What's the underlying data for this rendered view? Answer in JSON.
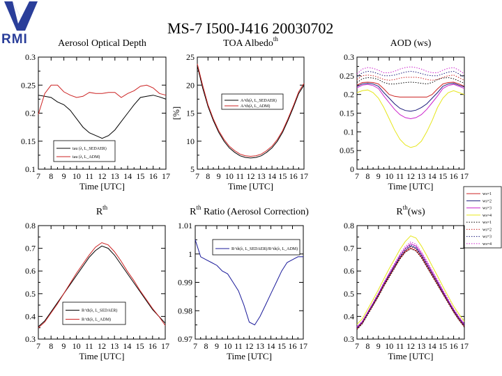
{
  "page": {
    "title": "MS-7 I500-J416 20030702",
    "logo_text": "RMI",
    "logo_color": "#2a3e9a"
  },
  "chart_data": [
    {
      "id": "aod",
      "type": "line",
      "title": "Aerosol Optical Depth",
      "title_sup": "",
      "xlabel": "Time [UTC]",
      "ylabel": "",
      "xlim": [
        7,
        17
      ],
      "ylim": [
        0.1,
        0.3
      ],
      "xticks": [
        "7",
        "8",
        "9",
        "10",
        "11",
        "12",
        "13",
        "14",
        "15",
        "16",
        "17"
      ],
      "yticks": [
        "0.1",
        "0.15",
        "0.2",
        "0.25",
        "0.3"
      ],
      "x": [
        7,
        7.5,
        8,
        8.5,
        9,
        9.5,
        10,
        10.5,
        11,
        11.5,
        12,
        12.5,
        13,
        13.5,
        14,
        14.5,
        15,
        15.5,
        16,
        16.5,
        17
      ],
      "series": [
        {
          "name": "tau (λ, L_SEDAER)",
          "color": "#000000",
          "dash": "",
          "values": [
            0.232,
            0.23,
            0.228,
            0.22,
            0.215,
            0.205,
            0.19,
            0.175,
            0.165,
            0.16,
            0.155,
            0.16,
            0.17,
            0.185,
            0.2,
            0.215,
            0.228,
            0.23,
            0.232,
            0.229,
            0.225
          ]
        },
        {
          "name": "tau (λ, L_ADM)",
          "color": "#cc2222",
          "dash": "",
          "values": [
            0.198,
            0.235,
            0.25,
            0.25,
            0.238,
            0.232,
            0.228,
            0.23,
            0.237,
            0.235,
            0.235,
            0.237,
            0.237,
            0.228,
            0.235,
            0.24,
            0.248,
            0.25,
            0.245,
            0.235,
            0.232
          ]
        }
      ],
      "legend_pos": "bottom-left"
    },
    {
      "id": "albedo",
      "type": "line",
      "title": "TOA Albedo",
      "title_sup": "th",
      "xlabel": "Time [UTC]",
      "ylabel": "[%]",
      "xlim": [
        7,
        17
      ],
      "ylim": [
        5,
        25
      ],
      "xticks": [
        "7",
        "8",
        "9",
        "10",
        "11",
        "12",
        "13",
        "14",
        "15",
        "16",
        "17"
      ],
      "yticks": [
        "5",
        "10",
        "15",
        "20",
        "25"
      ],
      "x": [
        7,
        7.5,
        8,
        8.5,
        9,
        9.5,
        10,
        10.5,
        11,
        11.5,
        12,
        12.5,
        13,
        13.5,
        14,
        14.5,
        15,
        15.5,
        16,
        16.5,
        17
      ],
      "series": [
        {
          "name": "A^th(λ, L_SEDAER)",
          "color": "#000000",
          "dash": "",
          "values": [
            23.5,
            19.5,
            16.2,
            13.7,
            11.6,
            10.0,
            8.8,
            8.0,
            7.4,
            7.1,
            7.0,
            7.1,
            7.4,
            8.0,
            8.8,
            10.0,
            11.6,
            13.7,
            16.0,
            18.5,
            20.0
          ]
        },
        {
          "name": "A^th(λ, L_ADM)",
          "color": "#cc2222",
          "dash": "",
          "values": [
            23.8,
            20.0,
            16.5,
            14.0,
            11.9,
            10.3,
            9.1,
            8.3,
            7.7,
            7.4,
            7.3,
            7.4,
            7.7,
            8.3,
            9.1,
            10.3,
            11.9,
            14.0,
            16.3,
            18.8,
            20.3
          ]
        }
      ],
      "legend_pos": "center"
    },
    {
      "id": "aod_ws",
      "type": "line",
      "title": "AOD (ws)",
      "title_sup": "",
      "xlabel": "Time [UTC]",
      "ylabel": "",
      "xlim": [
        7,
        17
      ],
      "ylim": [
        0,
        0.3
      ],
      "xticks": [
        "7",
        "8",
        "9",
        "10",
        "11",
        "12",
        "13",
        "14",
        "15",
        "16",
        "17"
      ],
      "yticks": [
        "0",
        "0.05",
        "0.1",
        "0.15",
        "0.2",
        "0.25",
        "0.3"
      ],
      "x": [
        7,
        7.5,
        8,
        8.5,
        9,
        9.5,
        10,
        10.5,
        11,
        11.5,
        12,
        12.5,
        13,
        13.5,
        14,
        14.5,
        15,
        15.5,
        16,
        16.5,
        17
      ],
      "series": [
        {
          "name": "ws=1",
          "color": "#cc2222",
          "dash": "",
          "values": [
            0.225,
            0.232,
            0.233,
            0.232,
            0.228,
            0.215,
            0.2,
            0.195,
            0.193,
            0.193,
            0.193,
            0.193,
            0.193,
            0.193,
            0.2,
            0.215,
            0.228,
            0.232,
            0.233,
            0.228,
            0.222
          ]
        },
        {
          "name": "ws=2",
          "color": "#1a1a7a",
          "dash": "",
          "values": [
            0.222,
            0.228,
            0.23,
            0.228,
            0.222,
            0.205,
            0.19,
            0.175,
            0.163,
            0.157,
            0.155,
            0.158,
            0.165,
            0.175,
            0.19,
            0.205,
            0.222,
            0.228,
            0.23,
            0.225,
            0.22
          ]
        },
        {
          "name": "ws=3",
          "color": "#cc22cc",
          "dash": "",
          "values": [
            0.218,
            0.225,
            0.227,
            0.224,
            0.216,
            0.196,
            0.178,
            0.16,
            0.146,
            0.138,
            0.135,
            0.138,
            0.146,
            0.16,
            0.178,
            0.196,
            0.216,
            0.224,
            0.227,
            0.222,
            0.216
          ]
        },
        {
          "name": "ws=4",
          "color": "#e6e61a",
          "dash": "",
          "values": [
            0.205,
            0.21,
            0.212,
            0.205,
            0.19,
            0.165,
            0.135,
            0.105,
            0.08,
            0.065,
            0.058,
            0.062,
            0.075,
            0.1,
            0.13,
            0.165,
            0.19,
            0.205,
            0.21,
            0.205,
            0.2
          ]
        },
        {
          "name": "ws=1",
          "color": "#000000",
          "dash": "1.5,2",
          "values": [
            0.232,
            0.242,
            0.245,
            0.244,
            0.24,
            0.232,
            0.228,
            0.228,
            0.23,
            0.232,
            0.233,
            0.232,
            0.23,
            0.228,
            0.232,
            0.24,
            0.244,
            0.245,
            0.242,
            0.236,
            0.23
          ]
        },
        {
          "name": "ws=2",
          "color": "#cc2222",
          "dash": "1.5,2",
          "values": [
            0.24,
            0.25,
            0.252,
            0.25,
            0.246,
            0.24,
            0.238,
            0.24,
            0.244,
            0.246,
            0.246,
            0.246,
            0.244,
            0.24,
            0.238,
            0.24,
            0.246,
            0.25,
            0.252,
            0.245,
            0.238
          ]
        },
        {
          "name": "ws=3",
          "color": "#1a1a7a",
          "dash": "1.5,2",
          "values": [
            0.248,
            0.258,
            0.262,
            0.26,
            0.255,
            0.25,
            0.25,
            0.252,
            0.256,
            0.26,
            0.262,
            0.26,
            0.256,
            0.252,
            0.25,
            0.25,
            0.255,
            0.26,
            0.262,
            0.255,
            0.246
          ]
        },
        {
          "name": "ws=4",
          "color": "#cc22cc",
          "dash": "1.5,2",
          "values": [
            0.255,
            0.268,
            0.272,
            0.27,
            0.265,
            0.258,
            0.258,
            0.262,
            0.268,
            0.272,
            0.274,
            0.272,
            0.268,
            0.262,
            0.258,
            0.258,
            0.265,
            0.27,
            0.272,
            0.265,
            0.255
          ]
        }
      ],
      "legend_pos": "right-outside"
    },
    {
      "id": "rth",
      "type": "line",
      "title": "R",
      "title_sup": "th",
      "xlabel": "Time [UTC]",
      "ylabel": "",
      "xlim": [
        7,
        17
      ],
      "ylim": [
        0.3,
        0.8
      ],
      "xticks": [
        "7",
        "8",
        "9",
        "10",
        "11",
        "12",
        "13",
        "14",
        "15",
        "16",
        "17"
      ],
      "yticks": [
        "0.3",
        "0.4",
        "0.5",
        "0.6",
        "0.7",
        "0.8"
      ],
      "x": [
        7,
        7.5,
        8,
        8.5,
        9,
        9.5,
        10,
        10.5,
        11,
        11.5,
        12,
        12.5,
        13,
        13.5,
        14,
        14.5,
        15,
        15.5,
        16,
        16.5,
        17
      ],
      "series": [
        {
          "name": "R^th(λ, L_SEDAER)",
          "color": "#000000",
          "dash": "",
          "values": [
            0.355,
            0.38,
            0.42,
            0.46,
            0.5,
            0.54,
            0.58,
            0.62,
            0.66,
            0.69,
            0.71,
            0.7,
            0.67,
            0.63,
            0.59,
            0.55,
            0.51,
            0.47,
            0.43,
            0.4,
            0.37
          ]
        },
        {
          "name": "R^th(λ, L_ADM)",
          "color": "#cc2222",
          "dash": "",
          "values": [
            0.35,
            0.375,
            0.415,
            0.455,
            0.5,
            0.545,
            0.59,
            0.63,
            0.67,
            0.705,
            0.725,
            0.715,
            0.685,
            0.645,
            0.6,
            0.56,
            0.515,
            0.475,
            0.435,
            0.4,
            0.36
          ]
        }
      ],
      "legend_pos": "bottom-center"
    },
    {
      "id": "ratio",
      "type": "line",
      "title": "R",
      "title_sup": "th",
      "title_rest": " Ratio (Aerosol Correction)",
      "xlabel": "Time [UTC]",
      "ylabel": "",
      "xlim": [
        7,
        17
      ],
      "ylim": [
        0.97,
        1.01
      ],
      "xticks": [
        "7",
        "8",
        "9",
        "10",
        "11",
        "12",
        "13",
        "14",
        "15",
        "16",
        "17"
      ],
      "yticks": [
        "0.97",
        "0.98",
        "0.99",
        "1",
        "1.01"
      ],
      "x": [
        7,
        7.5,
        8,
        8.5,
        9,
        9.5,
        10,
        10.5,
        11,
        11.5,
        12,
        12.5,
        13,
        13.5,
        14,
        14.5,
        15,
        15.5,
        16,
        16.5,
        17
      ],
      "series": [
        {
          "name": "R^th(λ, L_SEDAER)/R^th(λ, L_ADM)",
          "color": "#1a1a9a",
          "dash": "",
          "values": [
            1.005,
            0.999,
            0.998,
            0.997,
            0.996,
            0.994,
            0.993,
            0.99,
            0.987,
            0.982,
            0.976,
            0.975,
            0.978,
            0.982,
            0.986,
            0.99,
            0.994,
            0.997,
            0.998,
            0.999,
            0.999
          ]
        }
      ],
      "legend_pos": "top-right"
    },
    {
      "id": "rth_ws",
      "type": "line",
      "title": "R",
      "title_sup": "th",
      "title_rest": "(ws)",
      "xlabel": "Time [UTC]",
      "ylabel": "",
      "xlim": [
        7,
        17
      ],
      "ylim": [
        0.3,
        0.8
      ],
      "xticks": [
        "7",
        "8",
        "9",
        "10",
        "11",
        "12",
        "13",
        "14",
        "15",
        "16",
        "17"
      ],
      "yticks": [
        "0.3",
        "0.4",
        "0.5",
        "0.6",
        "0.7",
        "0.8"
      ],
      "x": [
        7,
        7.5,
        8,
        8.5,
        9,
        9.5,
        10,
        10.5,
        11,
        11.5,
        12,
        12.5,
        13,
        13.5,
        14,
        14.5,
        15,
        15.5,
        16,
        16.5,
        17
      ],
      "series": [
        {
          "name": "ws=1",
          "color": "#cc2222",
          "dash": "",
          "values": [
            0.345,
            0.37,
            0.41,
            0.45,
            0.49,
            0.535,
            0.575,
            0.615,
            0.655,
            0.685,
            0.7,
            0.69,
            0.66,
            0.62,
            0.58,
            0.54,
            0.5,
            0.46,
            0.42,
            0.385,
            0.355
          ]
        },
        {
          "name": "ws=2",
          "color": "#1a1a7a",
          "dash": "",
          "values": [
            0.348,
            0.373,
            0.413,
            0.453,
            0.495,
            0.54,
            0.58,
            0.62,
            0.66,
            0.69,
            0.71,
            0.7,
            0.668,
            0.628,
            0.588,
            0.548,
            0.505,
            0.465,
            0.425,
            0.39,
            0.36
          ]
        },
        {
          "name": "ws=3",
          "color": "#cc22cc",
          "dash": "",
          "values": [
            0.352,
            0.377,
            0.418,
            0.458,
            0.5,
            0.545,
            0.587,
            0.628,
            0.668,
            0.7,
            0.72,
            0.71,
            0.678,
            0.638,
            0.596,
            0.555,
            0.512,
            0.47,
            0.43,
            0.395,
            0.365
          ]
        },
        {
          "name": "ws=4",
          "color": "#e6e61a",
          "dash": "",
          "values": [
            0.365,
            0.39,
            0.432,
            0.474,
            0.518,
            0.565,
            0.61,
            0.652,
            0.695,
            0.73,
            0.755,
            0.745,
            0.71,
            0.668,
            0.622,
            0.578,
            0.532,
            0.488,
            0.445,
            0.41,
            0.378
          ]
        },
        {
          "name": "ws=1",
          "color": "#000000",
          "dash": "1.5,2",
          "values": [
            0.342,
            0.367,
            0.407,
            0.447,
            0.488,
            0.532,
            0.572,
            0.612,
            0.652,
            0.682,
            0.698,
            0.688,
            0.658,
            0.618,
            0.578,
            0.538,
            0.498,
            0.458,
            0.418,
            0.383,
            0.352
          ]
        },
        {
          "name": "ws=2",
          "color": "#cc2222",
          "dash": "1.5,2",
          "values": [
            0.346,
            0.371,
            0.411,
            0.452,
            0.493,
            0.538,
            0.578,
            0.618,
            0.658,
            0.69,
            0.706,
            0.696,
            0.665,
            0.625,
            0.585,
            0.545,
            0.502,
            0.462,
            0.422,
            0.387,
            0.357
          ]
        },
        {
          "name": "ws=3",
          "color": "#1a1a7a",
          "dash": "1.5,2",
          "values": [
            0.35,
            0.375,
            0.415,
            0.456,
            0.498,
            0.543,
            0.584,
            0.624,
            0.665,
            0.697,
            0.715,
            0.705,
            0.672,
            0.632,
            0.591,
            0.55,
            0.508,
            0.467,
            0.427,
            0.392,
            0.362
          ]
        },
        {
          "name": "ws=4",
          "color": "#cc22cc",
          "dash": "1.5,2",
          "values": [
            0.355,
            0.38,
            0.421,
            0.462,
            0.505,
            0.55,
            0.592,
            0.633,
            0.675,
            0.708,
            0.728,
            0.718,
            0.685,
            0.645,
            0.603,
            0.562,
            0.518,
            0.476,
            0.435,
            0.4,
            0.37
          ]
        }
      ],
      "legend_pos": "none"
    }
  ]
}
